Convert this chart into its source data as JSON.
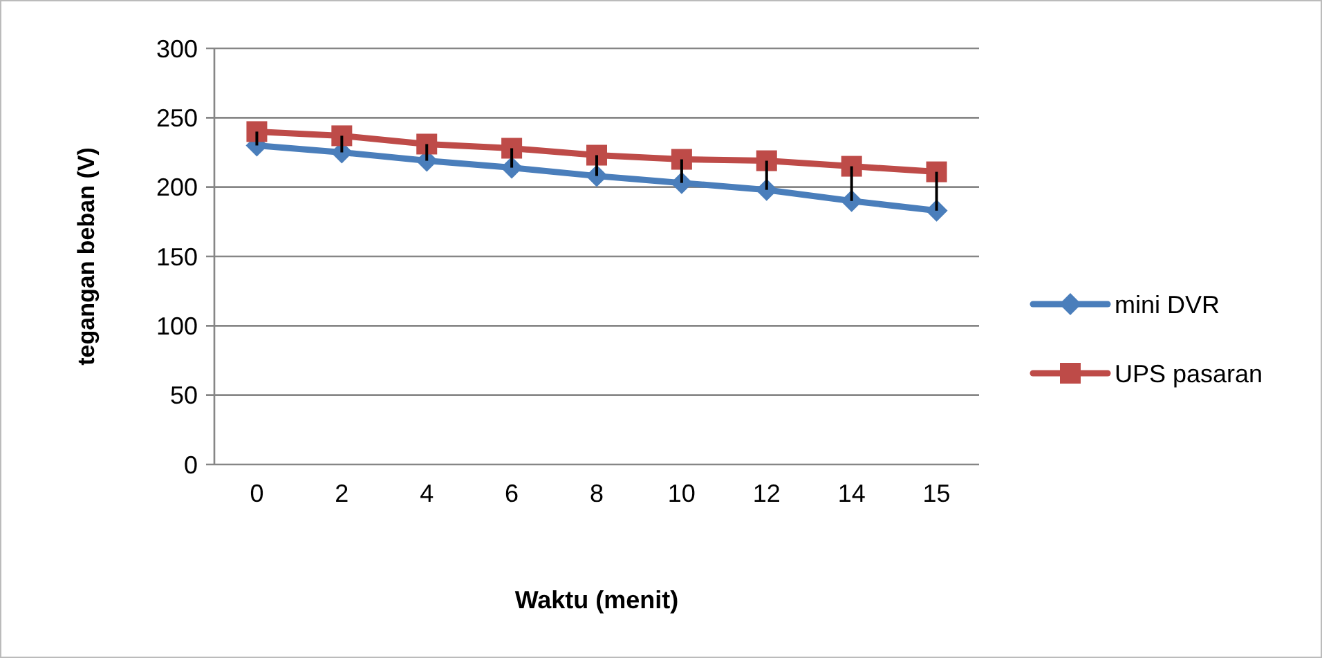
{
  "chart_data": {
    "type": "line",
    "xlabel": "Waktu (menit)",
    "ylabel": "tegangan beban (V)",
    "categories": [
      "0",
      "2",
      "4",
      "6",
      "8",
      "10",
      "12",
      "14",
      "15"
    ],
    "series": [
      {
        "name": "mini DVR",
        "color": "#4a7ebb",
        "marker": "diamond",
        "values": [
          230,
          225,
          219,
          214,
          208,
          203,
          198,
          190,
          183
        ]
      },
      {
        "name": "UPS pasaran",
        "color": "#be4b48",
        "marker": "square",
        "values": [
          240,
          237,
          231,
          228,
          223,
          220,
          219,
          215,
          211
        ]
      }
    ],
    "ylim": [
      0,
      300
    ],
    "yticks": [
      0,
      50,
      100,
      150,
      200,
      250,
      300
    ],
    "grid": "y",
    "legend": "right"
  }
}
